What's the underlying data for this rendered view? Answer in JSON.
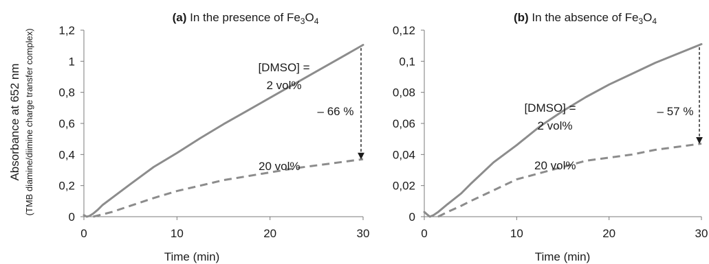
{
  "chart_data": [
    {
      "type": "line",
      "panel_label": "(a)",
      "title_text": "In the presence of Fe",
      "title_sub1": "3",
      "title_mid": "O",
      "title_sub2": "4",
      "xlabel": "Time (min)",
      "ylabel": "Absorbance at 652 nm",
      "ylabel_sub": "(TMB diamine/diimine charge transfer complex)",
      "xlim": [
        0,
        30
      ],
      "ylim": [
        0,
        1.2
      ],
      "xticks": [
        0,
        10,
        20,
        30
      ],
      "xtick_labels": [
        "0",
        "10",
        "20",
        "30"
      ],
      "yticks": [
        0,
        0.2,
        0.4,
        0.6,
        0.8,
        1.0,
        1.2
      ],
      "ytick_labels": [
        "0",
        "0,2",
        "0,4",
        "0,6",
        "0,8",
        "1",
        "1,2"
      ],
      "series": [
        {
          "style": "solid",
          "color": "#8c8c8c",
          "x": [
            0,
            0.3,
            0.6,
            1.0,
            1.5,
            2,
            3,
            5,
            7.5,
            10,
            12.5,
            15,
            17.5,
            20,
            22.5,
            25,
            27.5,
            30
          ],
          "y": [
            0.01,
            0.0,
            0.005,
            0.02,
            0.045,
            0.075,
            0.12,
            0.21,
            0.32,
            0.41,
            0.505,
            0.595,
            0.68,
            0.765,
            0.85,
            0.935,
            1.02,
            1.105
          ]
        },
        {
          "style": "dashed",
          "color": "#8c8c8c",
          "x": [
            1.0,
            2,
            3,
            5,
            7.5,
            10,
            12.5,
            15,
            17.5,
            20,
            22.5,
            25,
            27.5,
            30
          ],
          "y": [
            0.0,
            0.015,
            0.03,
            0.07,
            0.12,
            0.165,
            0.2,
            0.235,
            0.26,
            0.285,
            0.31,
            0.33,
            0.35,
            0.37
          ]
        }
      ],
      "annotations": {
        "dmso_line1": "[DMSO] =",
        "dmso_line2": "2 vol%",
        "dmso20": "20 vol%",
        "reduction": "– 66 %",
        "arrow_x": 30,
        "arrow_from": 1.085,
        "arrow_to": 0.39
      }
    },
    {
      "type": "line",
      "panel_label": "(b)",
      "title_text": "In the absence of Fe",
      "title_sub1": "3",
      "title_mid": "O",
      "title_sub2": "4",
      "xlabel": "Time (min)",
      "xlim": [
        0,
        30
      ],
      "ylim": [
        0,
        0.12
      ],
      "xticks": [
        0,
        10,
        20,
        30
      ],
      "xtick_labels": [
        "0",
        "10",
        "20",
        "30"
      ],
      "yticks": [
        0,
        0.02,
        0.04,
        0.06,
        0.08,
        0.1,
        0.12
      ],
      "ytick_labels": [
        "0",
        "0,02",
        "0,04",
        "0,06",
        "0,08",
        "0,1",
        "0,12"
      ],
      "series": [
        {
          "style": "solid",
          "color": "#8c8c8c",
          "x": [
            0,
            0.3,
            0.6,
            1.0,
            1.5,
            2.5,
            4,
            5,
            7.5,
            10,
            12.5,
            15,
            17.5,
            20,
            22.5,
            25,
            27.5,
            30
          ],
          "y": [
            0.003,
            0.0015,
            0.0,
            0.001,
            0.003,
            0.008,
            0.015,
            0.021,
            0.035,
            0.046,
            0.058,
            0.068,
            0.077,
            0.085,
            0.092,
            0.099,
            0.105,
            0.111
          ]
        },
        {
          "style": "dashed",
          "color": "#8c8c8c",
          "x": [
            1.5,
            2.5,
            4,
            5,
            7.5,
            10,
            12.5,
            15,
            17.5,
            20,
            22.5,
            25,
            27.5,
            30
          ],
          "y": [
            0.0,
            0.003,
            0.007,
            0.01,
            0.017,
            0.024,
            0.028,
            0.032,
            0.036,
            0.038,
            0.04,
            0.043,
            0.045,
            0.047
          ]
        }
      ],
      "annotations": {
        "dmso_line1": "[DMSO] =",
        "dmso_line2": "2 vol%",
        "dmso20": "20 vol%",
        "reduction": "– 57 %",
        "arrow_x": 30,
        "arrow_from": 0.109,
        "arrow_to": 0.049
      }
    }
  ]
}
